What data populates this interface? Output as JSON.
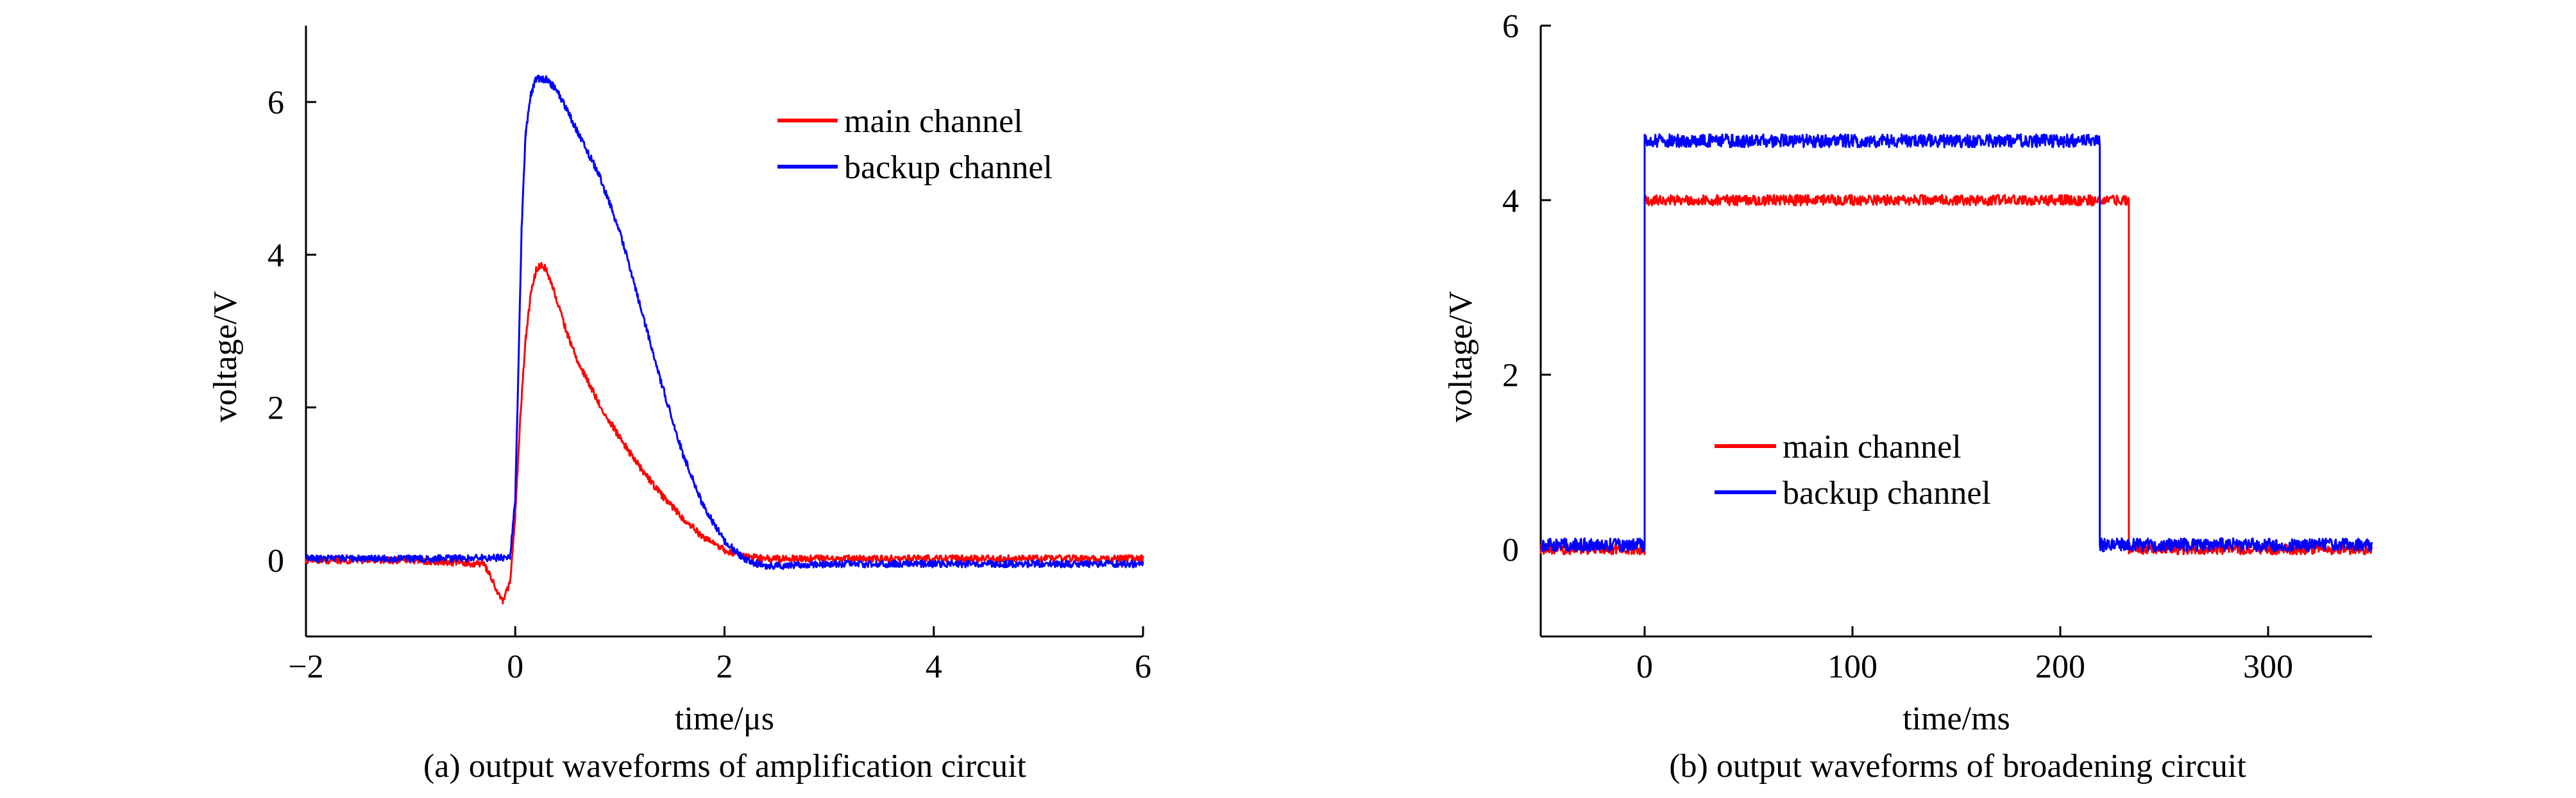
{
  "chart_data": [
    {
      "type": "line",
      "caption": "(a) output waveforms of amplification circuit",
      "xlabel": "time/μs",
      "ylabel": "voltage/V",
      "xlim": [
        -2,
        6
      ],
      "ylim": [
        -1,
        7
      ],
      "xticks": [
        -2,
        0,
        2,
        4,
        6
      ],
      "xtick_labels": [
        "−2",
        "0",
        "2",
        "4",
        "6"
      ],
      "yticks": [
        0,
        2,
        4,
        6
      ],
      "ytick_labels": [
        "0",
        "2",
        "4",
        "6"
      ],
      "grid": false,
      "legend_position": "top-right",
      "series": [
        {
          "name": "main channel",
          "color": "#ff0000",
          "x": [
            -2,
            -1,
            -0.3,
            -0.12,
            -0.05,
            0,
            0.05,
            0.1,
            0.15,
            0.2,
            0.25,
            0.3,
            0.4,
            0.5,
            0.6,
            0.8,
            1.0,
            1.2,
            1.4,
            1.6,
            1.8,
            2.0,
            2.2,
            2.4,
            3,
            4,
            5,
            6
          ],
          "y": [
            0.0,
            0.0,
            -0.05,
            -0.55,
            -0.3,
            0.6,
            1.9,
            2.9,
            3.5,
            3.8,
            3.88,
            3.8,
            3.4,
            2.95,
            2.6,
            2.05,
            1.6,
            1.2,
            0.85,
            0.55,
            0.3,
            0.13,
            0.05,
            0.02,
            0.02,
            0.02,
            0.02,
            0.02
          ]
        },
        {
          "name": "backup channel",
          "color": "#0000ff",
          "x": [
            -2,
            -1,
            -0.05,
            0,
            0.03,
            0.06,
            0.1,
            0.15,
            0.2,
            0.3,
            0.4,
            0.6,
            0.8,
            1.0,
            1.2,
            1.4,
            1.6,
            1.8,
            2.0,
            2.2,
            2.4,
            2.6,
            3,
            4,
            5,
            6
          ],
          "y": [
            0.02,
            0.02,
            0.03,
            0.8,
            2.5,
            4.3,
            5.6,
            6.1,
            6.3,
            6.3,
            6.15,
            5.6,
            5.05,
            4.3,
            3.3,
            2.3,
            1.4,
            0.7,
            0.25,
            0.0,
            -0.08,
            -0.07,
            -0.05,
            -0.05,
            -0.05,
            -0.05
          ]
        }
      ]
    },
    {
      "type": "line",
      "caption": "(b) output waveforms of broadening circuit",
      "xlabel": "time/ms",
      "ylabel": "voltage/V",
      "xlim": [
        -50,
        350
      ],
      "ylim": [
        -1,
        6
      ],
      "xticks": [
        0,
        100,
        200,
        300
      ],
      "xtick_labels": [
        "0",
        "100",
        "200",
        "300"
      ],
      "yticks": [
        0,
        2,
        4,
        6
      ],
      "ytick_labels": [
        "0",
        "2",
        "4",
        "6"
      ],
      "grid": false,
      "legend_position": "bottom-center",
      "series": [
        {
          "name": "main channel",
          "color": "#ff0000",
          "x": [
            -50,
            0,
            0,
            233,
            233,
            350
          ],
          "y": [
            0.0,
            0.0,
            4.0,
            4.0,
            0.0,
            0.0
          ]
        },
        {
          "name": "backup channel",
          "color": "#0000ff",
          "x": [
            -50,
            0,
            0,
            219,
            219,
            350
          ],
          "y": [
            0.05,
            0.05,
            4.68,
            4.68,
            0.05,
            0.05
          ]
        }
      ]
    }
  ]
}
